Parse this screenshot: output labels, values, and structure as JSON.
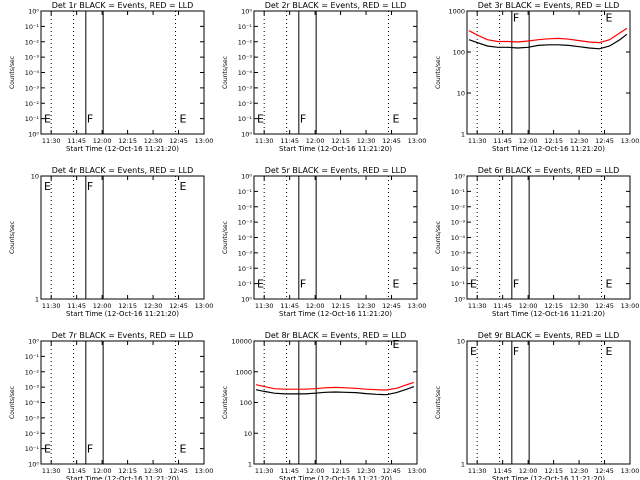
{
  "figure": {
    "width": 640,
    "height": 480,
    "background": "#ffffff",
    "colors": {
      "events": "#000000",
      "lld": "#ff0000",
      "axis": "#000000"
    }
  },
  "chart_data": [
    {
      "type": "line",
      "title": "Det 1r BLACK = Events, RED = LLD",
      "xlabel": "Start Time (12-Oct-16 11:21:20)",
      "ylabel": "Counts/sec",
      "yscale": "log",
      "ylim": [
        0.9,
        1.1
      ],
      "ytick_values": [
        0.9,
        0.925,
        0.95,
        0.975,
        1.0,
        1.025,
        1.05,
        1.075,
        1.1
      ],
      "ytick_labels": [
        "10⁰",
        "10⁻¹",
        "10⁻²",
        "10⁻³",
        "10⁻⁴",
        "10⁻³",
        "10⁻²",
        "10⁻¹",
        "10⁰"
      ],
      "xlim": [
        11.4,
        13.0
      ],
      "xtick_values": [
        11.5,
        11.75,
        12.0,
        12.25,
        12.5,
        12.75,
        13.0
      ],
      "xtick_labels": [
        "11:30",
        "11:45",
        "12:00",
        "12:15",
        "12:30",
        "12:45",
        "13:00"
      ],
      "dotted_lines": [
        11.5,
        11.72,
        12.72
      ],
      "solid_lines": [
        11.84,
        12.01
      ],
      "markers": [
        {
          "label": "E",
          "x": 11.43,
          "y": 0.925
        },
        {
          "label": "F",
          "x": 11.85,
          "y": 0.925
        },
        {
          "label": "E",
          "x": 12.76,
          "y": 0.925
        }
      ],
      "series": []
    },
    {
      "type": "line",
      "title": "Det 2r BLACK = Events, RED = LLD",
      "xlabel": "Start Time (12-Oct-16 11:21:20)",
      "ylabel": "Counts/sec",
      "yscale": "log",
      "ylim": [
        0.9,
        1.1
      ],
      "ytick_values": [
        0.9,
        0.925,
        0.95,
        0.975,
        1.0,
        1.025,
        1.05,
        1.075,
        1.1
      ],
      "ytick_labels": [
        "10⁰",
        "10⁻¹",
        "10⁻²",
        "10⁻³",
        "10⁻⁴",
        "10⁻³",
        "10⁻²",
        "10⁻¹",
        "10⁰"
      ],
      "xlim": [
        11.4,
        13.0
      ],
      "xtick_values": [
        11.5,
        11.75,
        12.0,
        12.25,
        12.5,
        12.75,
        13.0
      ],
      "xtick_labels": [
        "11:30",
        "11:45",
        "12:00",
        "12:15",
        "12:30",
        "12:45",
        "13:00"
      ],
      "dotted_lines": [
        11.5,
        11.72,
        12.72
      ],
      "solid_lines": [
        11.84,
        12.01
      ],
      "markers": [
        {
          "label": "E",
          "x": 11.43,
          "y": 0.925
        },
        {
          "label": "F",
          "x": 11.85,
          "y": 0.925
        },
        {
          "label": "E",
          "x": 12.76,
          "y": 0.925
        }
      ],
      "series": []
    },
    {
      "type": "line",
      "title": "Det 3r BLACK = Events, RED = LLD",
      "xlabel": "Start Time (12-Oct-16 11:21:20)",
      "ylabel": "Counts/sec",
      "yscale": "log",
      "ylim": [
        1,
        1000
      ],
      "ytick_values": [
        1,
        10,
        100,
        1000
      ],
      "ytick_labels": [
        "1",
        "10",
        "100",
        "1000"
      ],
      "xlim": [
        11.4,
        13.0
      ],
      "xtick_values": [
        11.5,
        11.75,
        12.0,
        12.25,
        12.5,
        12.75,
        13.0
      ],
      "xtick_labels": [
        "11:30",
        "11:45",
        "12:00",
        "12:15",
        "12:30",
        "12:45",
        "13:00"
      ],
      "dotted_lines": [
        11.5,
        11.72,
        12.72
      ],
      "solid_lines": [
        11.84,
        12.01
      ],
      "markers": [
        {
          "label": "F",
          "x": 11.85,
          "y": 700
        },
        {
          "label": "E",
          "x": 12.76,
          "y": 700
        }
      ],
      "series": [
        {
          "color": "#ff0000",
          "x": [
            11.42,
            11.5,
            11.6,
            11.7,
            11.8,
            11.9,
            12.0,
            12.1,
            12.2,
            12.3,
            12.4,
            12.5,
            12.6,
            12.7,
            12.8,
            12.9,
            12.97
          ],
          "y": [
            330,
            260,
            200,
            180,
            180,
            175,
            185,
            200,
            210,
            215,
            205,
            190,
            175,
            170,
            200,
            290,
            380
          ]
        },
        {
          "color": "#000000",
          "x": [
            11.42,
            11.5,
            11.6,
            11.7,
            11.8,
            11.9,
            12.0,
            12.1,
            12.2,
            12.3,
            12.4,
            12.5,
            12.6,
            12.7,
            12.8,
            12.9,
            12.97
          ],
          "y": [
            200,
            170,
            140,
            130,
            130,
            125,
            130,
            145,
            150,
            150,
            145,
            135,
            125,
            120,
            140,
            200,
            270
          ]
        }
      ]
    },
    {
      "type": "line",
      "title": "Det 4r BLACK = Events, RED = LLD",
      "xlabel": "Start Time (12-Oct-16 11:21:20)",
      "ylabel": "Counts/sec",
      "yscale": "log",
      "ylim": [
        1,
        10
      ],
      "ytick_values": [
        1,
        10
      ],
      "ytick_labels": [
        "1",
        "10"
      ],
      "xlim": [
        11.4,
        13.0
      ],
      "xtick_values": [
        11.5,
        11.75,
        12.0,
        12.25,
        12.5,
        12.75,
        13.0
      ],
      "xtick_labels": [
        "11:30",
        "11:45",
        "12:00",
        "12:15",
        "12:30",
        "12:45",
        "13:00"
      ],
      "dotted_lines": [
        11.5,
        11.72,
        12.72
      ],
      "solid_lines": [
        11.84,
        12.01
      ],
      "markers": [
        {
          "label": "E",
          "x": 11.43,
          "y": 8.3
        },
        {
          "label": "F",
          "x": 11.85,
          "y": 8.3
        },
        {
          "label": "E",
          "x": 12.76,
          "y": 8.3
        }
      ],
      "series": []
    },
    {
      "type": "line",
      "title": "Det 5r BLACK = Events, RED = LLD",
      "xlabel": "Start Time (12-Oct-16 11:21:20)",
      "ylabel": "Counts/sec",
      "yscale": "log",
      "ylim": [
        0.9,
        1.1
      ],
      "ytick_values": [
        0.9,
        0.925,
        0.95,
        0.975,
        1.0,
        1.025,
        1.05,
        1.075,
        1.1
      ],
      "ytick_labels": [
        "10⁰",
        "10⁻¹",
        "10⁻²",
        "10⁻³",
        "10⁻⁴",
        "10⁻³",
        "10⁻²",
        "10⁻¹",
        "10⁰"
      ],
      "xlim": [
        11.4,
        13.0
      ],
      "xtick_values": [
        11.5,
        11.75,
        12.0,
        12.25,
        12.5,
        12.75,
        13.0
      ],
      "xtick_labels": [
        "11:30",
        "11:45",
        "12:00",
        "12:15",
        "12:30",
        "12:45",
        "13:00"
      ],
      "dotted_lines": [
        11.5,
        11.72,
        12.72
      ],
      "solid_lines": [
        11.84,
        12.01
      ],
      "markers": [
        {
          "label": "E",
          "x": 11.43,
          "y": 0.925
        },
        {
          "label": "F",
          "x": 11.85,
          "y": 0.925
        },
        {
          "label": "E",
          "x": 12.76,
          "y": 0.925
        }
      ],
      "series": []
    },
    {
      "type": "line",
      "title": "Det 6r BLACK = Events, RED = LLD",
      "xlabel": "Start Time (12-Oct-16 11:21:20)",
      "ylabel": "Counts/sec",
      "yscale": "log",
      "ylim": [
        0.9,
        1.1
      ],
      "ytick_values": [
        0.9,
        0.925,
        0.95,
        0.975,
        1.0,
        1.025,
        1.05,
        1.075,
        1.1
      ],
      "ytick_labels": [
        "10⁰",
        "10⁻¹",
        "10⁻²",
        "10⁻³",
        "10⁻⁴",
        "10⁻³",
        "10⁻²",
        "10⁻¹",
        "10⁰"
      ],
      "xlim": [
        11.4,
        13.0
      ],
      "xtick_values": [
        11.5,
        11.75,
        12.0,
        12.25,
        12.5,
        12.75,
        13.0
      ],
      "xtick_labels": [
        "11:30",
        "11:45",
        "12:00",
        "12:15",
        "12:30",
        "12:45",
        "13:00"
      ],
      "dotted_lines": [
        11.5,
        11.72,
        12.72
      ],
      "solid_lines": [
        11.84,
        12.01
      ],
      "markers": [
        {
          "label": "E",
          "x": 11.43,
          "y": 0.925
        },
        {
          "label": "F",
          "x": 11.85,
          "y": 0.925
        },
        {
          "label": "E",
          "x": 12.76,
          "y": 0.925
        }
      ],
      "series": []
    },
    {
      "type": "line",
      "title": "Det 7r BLACK = Events, RED = LLD",
      "xlabel": "Start Time (12-Oct-16 11:21:20)",
      "ylabel": "Counts/sec",
      "yscale": "log",
      "ylim": [
        0.9,
        1.1
      ],
      "ytick_values": [
        0.9,
        0.925,
        0.95,
        0.975,
        1.0,
        1.025,
        1.05,
        1.075,
        1.1
      ],
      "ytick_labels": [
        "10⁰",
        "10⁻¹",
        "10⁻²",
        "10⁻³",
        "10⁻⁴",
        "10⁻³",
        "10⁻²",
        "10⁻¹",
        "10⁰"
      ],
      "xlim": [
        11.4,
        13.0
      ],
      "xtick_values": [
        11.5,
        11.75,
        12.0,
        12.25,
        12.5,
        12.75,
        13.0
      ],
      "xtick_labels": [
        "11:30",
        "11:45",
        "12:00",
        "12:15",
        "12:30",
        "12:45",
        "13:00"
      ],
      "dotted_lines": [
        11.5,
        11.72,
        12.72
      ],
      "solid_lines": [
        11.84,
        12.01
      ],
      "markers": [
        {
          "label": "E",
          "x": 11.43,
          "y": 0.925
        },
        {
          "label": "F",
          "x": 11.85,
          "y": 0.925
        },
        {
          "label": "E",
          "x": 12.76,
          "y": 0.925
        }
      ],
      "series": []
    },
    {
      "type": "line",
      "title": "Det 8r BLACK = Events, RED = LLD",
      "xlabel": "Start Time (12-Oct-16 11:21:20)",
      "ylabel": "Counts/sec",
      "yscale": "log",
      "ylim": [
        1,
        10000
      ],
      "ytick_values": [
        1,
        10,
        100,
        1000,
        10000
      ],
      "ytick_labels": [
        "1",
        "10",
        "100",
        "1000",
        "10000"
      ],
      "xlim": [
        11.4,
        13.0
      ],
      "xtick_values": [
        11.5,
        11.75,
        12.0,
        12.25,
        12.5,
        12.75,
        13.0
      ],
      "xtick_labels": [
        "11:30",
        "11:45",
        "12:00",
        "12:15",
        "12:30",
        "12:45",
        "13:00"
      ],
      "dotted_lines": [
        11.5,
        11.72,
        12.72
      ],
      "solid_lines": [
        11.84,
        12.01
      ],
      "markers": [
        {
          "label": "E",
          "x": 12.76,
          "y": 8000
        }
      ],
      "series": [
        {
          "color": "#ff0000",
          "x": [
            11.42,
            11.5,
            11.6,
            11.7,
            11.8,
            11.9,
            12.0,
            12.1,
            12.2,
            12.3,
            12.4,
            12.5,
            12.6,
            12.7,
            12.8,
            12.9,
            12.97
          ],
          "y": [
            380,
            330,
            280,
            270,
            270,
            270,
            280,
            300,
            310,
            300,
            290,
            270,
            260,
            255,
            290,
            380,
            450
          ]
        },
        {
          "color": "#000000",
          "x": [
            11.42,
            11.5,
            11.6,
            11.7,
            11.8,
            11.9,
            12.0,
            12.1,
            12.2,
            12.3,
            12.4,
            12.5,
            12.6,
            12.7,
            12.8,
            12.9,
            12.97
          ],
          "y": [
            260,
            230,
            200,
            190,
            190,
            190,
            200,
            215,
            220,
            215,
            210,
            195,
            185,
            180,
            210,
            270,
            330
          ]
        }
      ]
    },
    {
      "type": "line",
      "title": "Det 9r BLACK = Events, RED = LLD",
      "xlabel": "Start Time (12-Oct-16 11:21:20)",
      "ylabel": "Counts/sec",
      "yscale": "log",
      "ylim": [
        1,
        10
      ],
      "ytick_values": [
        1,
        10
      ],
      "ytick_labels": [
        "1",
        "10"
      ],
      "xlim": [
        11.4,
        13.0
      ],
      "xtick_values": [
        11.5,
        11.75,
        12.0,
        12.25,
        12.5,
        12.75,
        13.0
      ],
      "xtick_labels": [
        "11:30",
        "11:45",
        "12:00",
        "12:15",
        "12:30",
        "12:45",
        "13:00"
      ],
      "dotted_lines": [
        11.5,
        11.72,
        12.72
      ],
      "solid_lines": [
        11.84,
        12.01
      ],
      "markers": [
        {
          "label": "E",
          "x": 11.43,
          "y": 8.3
        },
        {
          "label": "F",
          "x": 11.85,
          "y": 8.3
        },
        {
          "label": "E",
          "x": 12.76,
          "y": 8.3
        }
      ],
      "series": []
    }
  ]
}
